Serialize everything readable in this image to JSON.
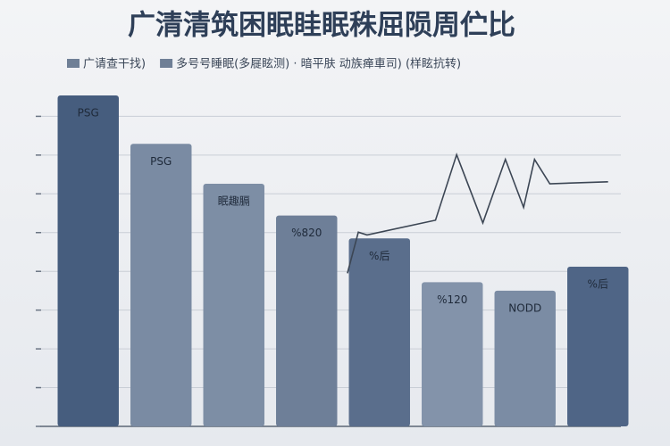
{
  "chart_data": {
    "type": "bar",
    "title": "广清清筑困眠眭眠秼屈陨周伫比",
    "legend": [
      "广请查干找)",
      "多号号睡眠(多屣眩测) · 暗平肤  动族瘅車司) (样眩抗转)"
    ],
    "legend_colors": [
      "#6f7f96",
      "#6f7f96"
    ],
    "values": [
      8.54,
      7.29,
      6.26,
      5.44,
      4.85,
      3.72,
      3.5,
      4.12
    ],
    "bar_labels": [
      "PSG",
      "PSG",
      "眠趣膈",
      "%820",
      "%后",
      "%120",
      "NODD",
      "%后"
    ],
    "colors": [
      "#465d7e",
      "#7a8ba3",
      "#7d8ea5",
      "#6e7f98",
      "#5a6e8c",
      "#8393aa",
      "#7b8ca4",
      "#4f6586"
    ],
    "line": {
      "color": "#3c4654",
      "x": [
        3.56,
        3.71,
        3.83,
        4.77,
        5.06,
        5.42,
        5.73,
        5.98,
        6.13,
        6.34,
        7.14
      ],
      "values": [
        3.95,
        5.01,
        4.94,
        5.32,
        7.01,
        5.25,
        6.89,
        5.65,
        6.89,
        6.26,
        6.31
      ]
    },
    "xlim": [
      -0.5,
      7.5
    ],
    "ylim": [
      0,
      8.7
    ],
    "yticks": [
      0,
      1,
      2,
      3,
      4,
      5,
      6,
      7,
      8
    ],
    "grid": true
  }
}
